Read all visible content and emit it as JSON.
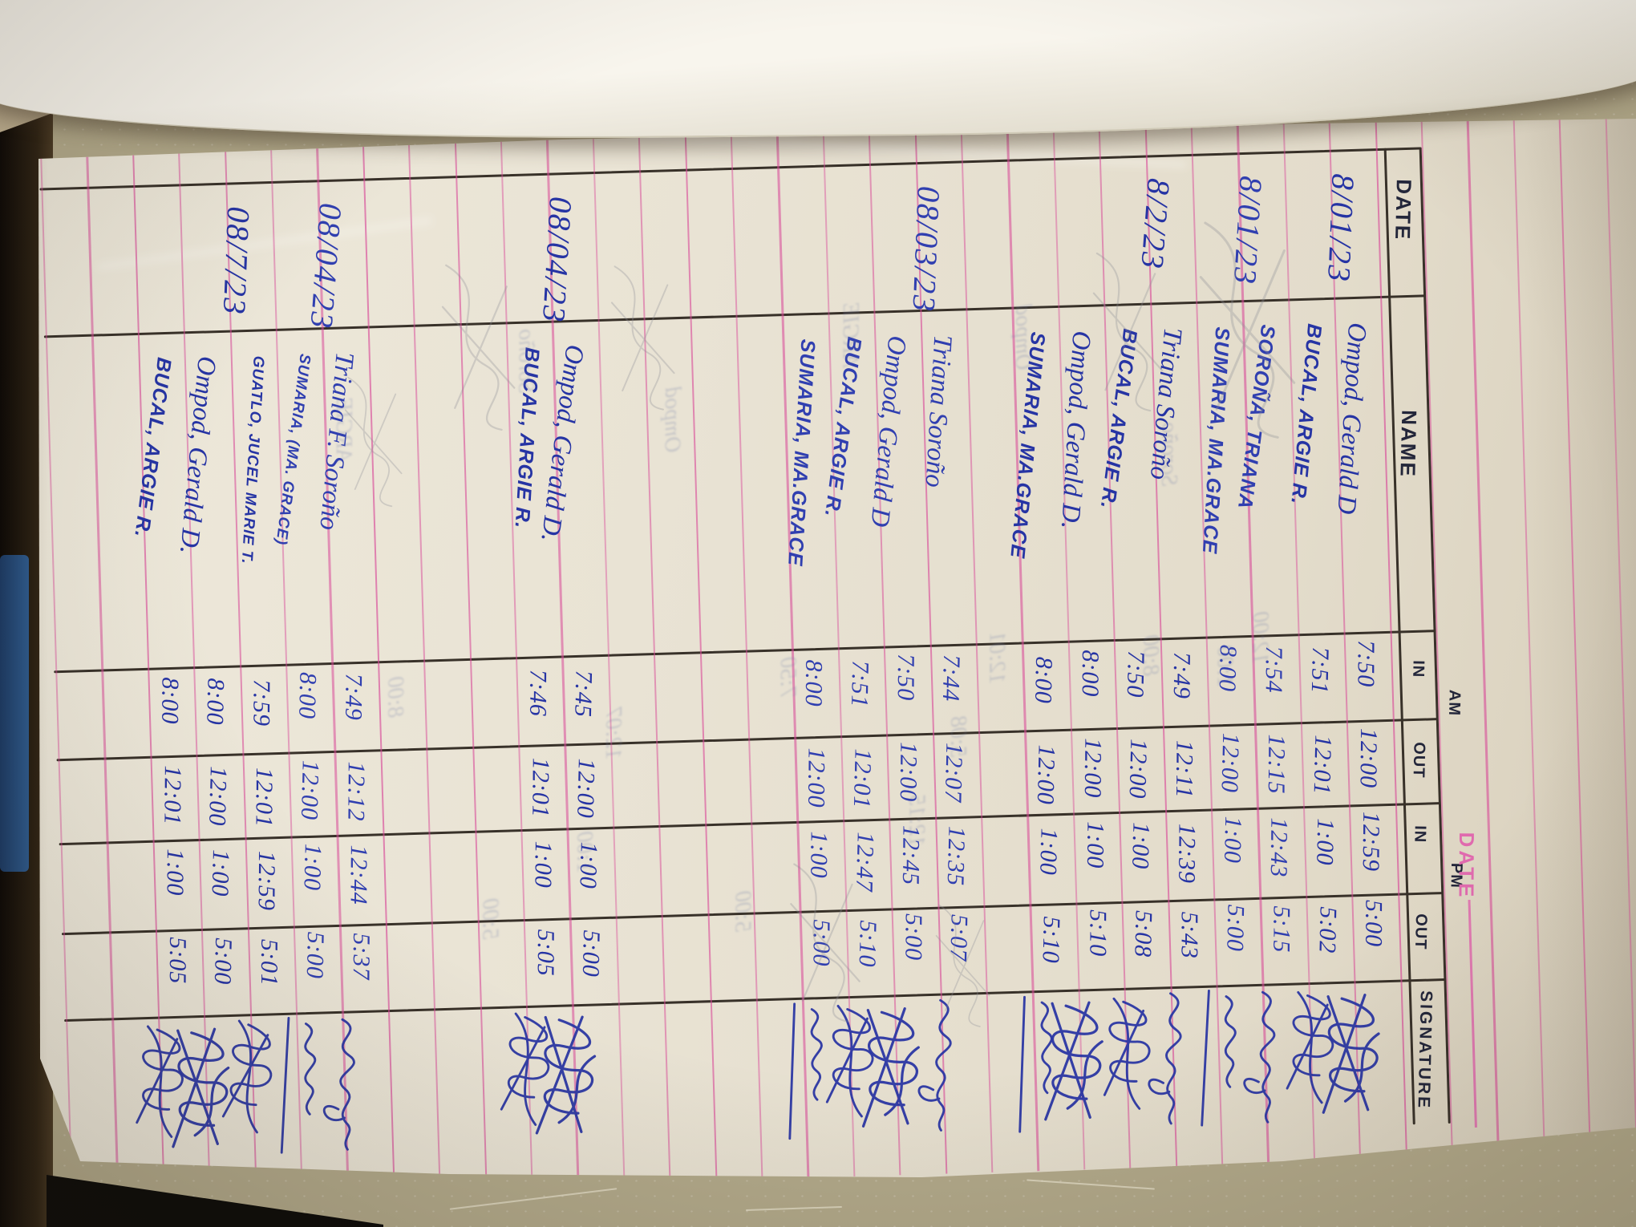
{
  "scene": {
    "type": "photo of handwritten attendance logbook page, rotated 90 degrees",
    "colors": {
      "ink_blue": "#2634a4",
      "ruled_line_pink": "#d8489a",
      "table_line_black": "#383129",
      "paper": "#e9e3d4",
      "printed_pink": "#e06aae",
      "tabletop_tan": "#b2a98a",
      "pencil_ghost": "#6e7ba8"
    }
  },
  "page": {
    "printed_date_label": "DATE",
    "header": {
      "date": "DATE",
      "name": "NAME",
      "am": "AM",
      "pm": "PM",
      "in": "IN",
      "out": "OUT",
      "signature": "SIGNATURE"
    },
    "groups": [
      {
        "date": "8/01/23",
        "entries": [
          {
            "name": "Ompod, Gerald D",
            "am_in": "7:50",
            "am_out": "12:00",
            "pm_in": "12:59",
            "pm_out": "5:00",
            "signature": "big-scribble"
          },
          {
            "name": "BUCAL, ARGIE R.",
            "am_in": "7:51",
            "am_out": "12:01",
            "pm_in": "1:00",
            "pm_out": "5:02",
            "signature": "scribble-loops"
          }
        ]
      },
      {
        "date": "8/01/23",
        "entries": [
          {
            "name": "SOROÑA, TRIANA",
            "am_in": "7:54",
            "am_out": "12:15",
            "pm_in": "12:43",
            "pm_out": "5:15",
            "signature": "cursive-sorono"
          },
          {
            "name": "SUMARIA, MA.GRACE",
            "am_in": "8:00",
            "am_out": "12:00",
            "pm_in": "1:00",
            "pm_out": "5:00",
            "signature": "fama-underline"
          }
        ]
      },
      {
        "date": "8/2/23",
        "entries": [
          {
            "name": "Triana Soroño",
            "am_in": "7:49",
            "am_out": "12:11",
            "pm_in": "12:39",
            "pm_out": "5:43",
            "signature": "cursive-sorono"
          },
          {
            "name": "BUCAL, ARGIE R.",
            "am_in": "7:50",
            "am_out": "12:00",
            "pm_in": "1:00",
            "pm_out": "5:08",
            "signature": "scribble-loops"
          },
          {
            "name": "Ompod, Gerald D.",
            "am_in": "8:00",
            "am_out": "12:00",
            "pm_in": "1:00",
            "pm_out": "5:10",
            "signature": "big-scribble"
          },
          {
            "name": "SUMARIA, MA.GRACE",
            "am_in": "8:00",
            "am_out": "12:00",
            "pm_in": "1:00",
            "pm_out": "5:10",
            "signature": "fama-underline"
          }
        ]
      },
      {
        "date": "08/03/23",
        "entries": [
          {
            "name": "Triana Soroño",
            "am_in": "7:44",
            "am_out": "12:07",
            "pm_in": "12:35",
            "pm_out": "5:07",
            "signature": "cursive-sorono"
          },
          {
            "name": "Ompod, Gerald D",
            "am_in": "7:50",
            "am_out": "12:00",
            "pm_in": "12:45",
            "pm_out": "5:00",
            "signature": "big-scribble"
          },
          {
            "name": "BUCAL, ARGIE R.",
            "am_in": "7:51",
            "am_out": "12:01",
            "pm_in": "12:47",
            "pm_out": "5:10",
            "signature": "scribble-loops"
          },
          {
            "name": "SUMARIA, MA.GRACE",
            "am_in": "8:00",
            "am_out": "12:00",
            "pm_in": "1:00",
            "pm_out": "5:00",
            "signature": "fama-underline"
          }
        ]
      },
      {
        "date": "08/04/23",
        "entries": [
          {
            "name": "Ompod, Gerald D.",
            "am_in": "7:45",
            "am_out": "12:00",
            "pm_in": "1:00",
            "pm_out": "5:00",
            "signature": "big-scribble"
          },
          {
            "name": "BUCAL, ARGIE R.",
            "am_in": "7:46",
            "am_out": "12:01",
            "pm_in": "1:00",
            "pm_out": "5:05",
            "signature": "scribble-loops"
          }
        ]
      },
      {
        "date": "08/04/23",
        "entries": [
          {
            "name": "Triana F. Soroño",
            "am_in": "7:49",
            "am_out": "12:12",
            "pm_in": "12:44",
            "pm_out": "5:37",
            "signature": "cursive-sorono"
          },
          {
            "name": "SUMARIA, (MA. GRACE)",
            "am_in": "8:00",
            "am_out": "12:00",
            "pm_in": "1:00",
            "pm_out": "5:00",
            "signature": "fama-underline"
          }
        ]
      },
      {
        "date": "08/7/23",
        "entries": [
          {
            "name": "GUATLO, JUCEL MARIE T.",
            "am_in": "7:59",
            "am_out": "12:01",
            "pm_in": "12:59",
            "pm_out": "5:01",
            "signature": "scribble-loops"
          },
          {
            "name": "Ompod, Gerald D.",
            "am_in": "8:00",
            "am_out": "12:00",
            "pm_in": "1:00",
            "pm_out": "5:00",
            "signature": "big-scribble"
          },
          {
            "name": "BUCAL, ARGIE R.",
            "am_in": "8:00",
            "am_out": "12:01",
            "pm_in": "1:00",
            "pm_out": "5:05",
            "signature": "scribble-loops"
          }
        ]
      }
    ],
    "ghost_marks": [
      "12:00",
      "1:00",
      "Soroño",
      "8:00",
      "Ompod",
      "12:01",
      "5:08",
      "12:15",
      "ARGIE",
      "7:50",
      "5:00",
      "12:07"
    ]
  }
}
